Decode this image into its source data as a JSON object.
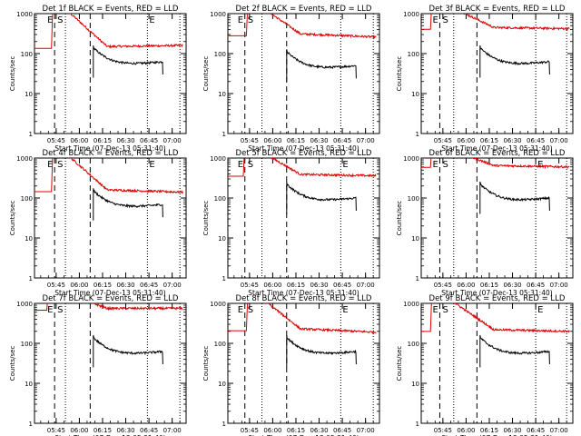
{
  "chart_data": {
    "type": "line",
    "y_scale": "log",
    "ylim": [
      1,
      1000
    ],
    "ylabel": "Counts/sec",
    "x_tick_labels": [
      "05:45",
      "06:00",
      "06:15",
      "06:30",
      "06:45",
      "07:00"
    ],
    "xlabel": "Start Time (07-Dec-13 05:31:40)",
    "y_tick_labels": [
      "1",
      "10",
      "100",
      "1000"
    ],
    "grid": false,
    "series_colors": {
      "events": "#000000",
      "lld": "#dd0000"
    },
    "panels": [
      {
        "title": "Det 1f BLACK = Events, RED = LLD",
        "marks": [
          "E",
          "S",
          "E"
        ],
        "dashed_x": [
          "05:44",
          "06:07"
        ],
        "dotted_x": [
          "05:51",
          "06:44"
        ],
        "red": {
          "level_start": 150,
          "level_end": 160,
          "peak_min": "05:43"
        },
        "black": {
          "start": "06:09",
          "end": "06:54",
          "level": 50
        }
      },
      {
        "title": "Det 2f BLACK = Events, RED = LLD",
        "marks": [
          "E",
          "S"
        ],
        "dashed_x": [
          "05:42",
          "06:09"
        ],
        "dotted_x": [
          "05:53",
          "06:44"
        ],
        "red": {
          "level_start": 310,
          "level_end": 260,
          "peak_min": "05:44"
        },
        "black": {
          "start": "06:09",
          "end": "06:54",
          "level": 40
        }
      },
      {
        "title": "Det 3f BLACK = Events, RED = LLD",
        "marks": [
          "E",
          "S"
        ],
        "dashed_x": [
          "05:43",
          "06:07"
        ],
        "dotted_x": [
          "05:52",
          "06:45"
        ],
        "red": {
          "level_start": 450,
          "level_end": 420,
          "peak_min": "05:38"
        },
        "black": {
          "start": "06:09",
          "end": "06:54",
          "level": 50
        }
      },
      {
        "title": "Det 4f BLACK = Events, RED = LLD",
        "marks": [
          "E",
          "S",
          "E"
        ],
        "dashed_x": [
          "05:44",
          "06:07"
        ],
        "dotted_x": [
          "05:51",
          "06:44"
        ],
        "red": {
          "level_start": 160,
          "level_end": 140,
          "peak_min": "05:43"
        },
        "black": {
          "start": "06:09",
          "end": "06:54",
          "level": 55
        }
      },
      {
        "title": "Det 5f BLACK = Events, RED = LLD",
        "marks": [
          "E",
          "S",
          "E"
        ],
        "dashed_x": [
          "05:42",
          "06:09"
        ],
        "dotted_x": [
          "05:53",
          "06:44"
        ],
        "red": {
          "level_start": 390,
          "level_end": 360,
          "peak_min": "05:42"
        },
        "black": {
          "start": "06:09",
          "end": "06:54",
          "level": 80
        }
      },
      {
        "title": "Det 6f BLACK = Events, RED = LLD",
        "marks": [
          "E",
          "S",
          "E"
        ],
        "dashed_x": [
          "05:43",
          "06:07"
        ],
        "dotted_x": [
          "05:52",
          "06:45"
        ],
        "red": {
          "level_start": 650,
          "level_end": 600,
          "peak_min": "05:38"
        },
        "black": {
          "start": "06:09",
          "end": "06:54",
          "level": 80
        }
      },
      {
        "title": "Det 7f BLACK = Events, RED = LLD",
        "marks": [
          "E",
          "S"
        ],
        "dashed_x": [
          "05:44",
          "06:07"
        ],
        "dotted_x": [
          "05:51",
          "06:44"
        ],
        "red": {
          "level_start": 750,
          "level_end": 750,
          "peak_min": "05:40"
        },
        "black": {
          "start": "06:09",
          "end": "06:54",
          "level": 50
        }
      },
      {
        "title": "Det 8f BLACK = Events, RED = LLD",
        "marks": [
          "E",
          "S",
          "E"
        ],
        "dashed_x": [
          "05:42",
          "06:09"
        ],
        "dotted_x": [
          "05:53",
          "06:44"
        ],
        "red": {
          "level_start": 230,
          "level_end": 190,
          "peak_min": "05:44"
        },
        "black": {
          "start": "06:09",
          "end": "06:54",
          "level": 50
        }
      },
      {
        "title": "Det 9f BLACK = Events, RED = LLD",
        "marks": [
          "E",
          "S",
          "E"
        ],
        "dashed_x": [
          "05:43",
          "06:07"
        ],
        "dotted_x": [
          "05:52",
          "06:45"
        ],
        "red": {
          "level_start": 220,
          "level_end": 200,
          "peak_min": "05:38"
        },
        "black": {
          "start": "06:09",
          "end": "06:54",
          "level": 50
        }
      }
    ]
  }
}
